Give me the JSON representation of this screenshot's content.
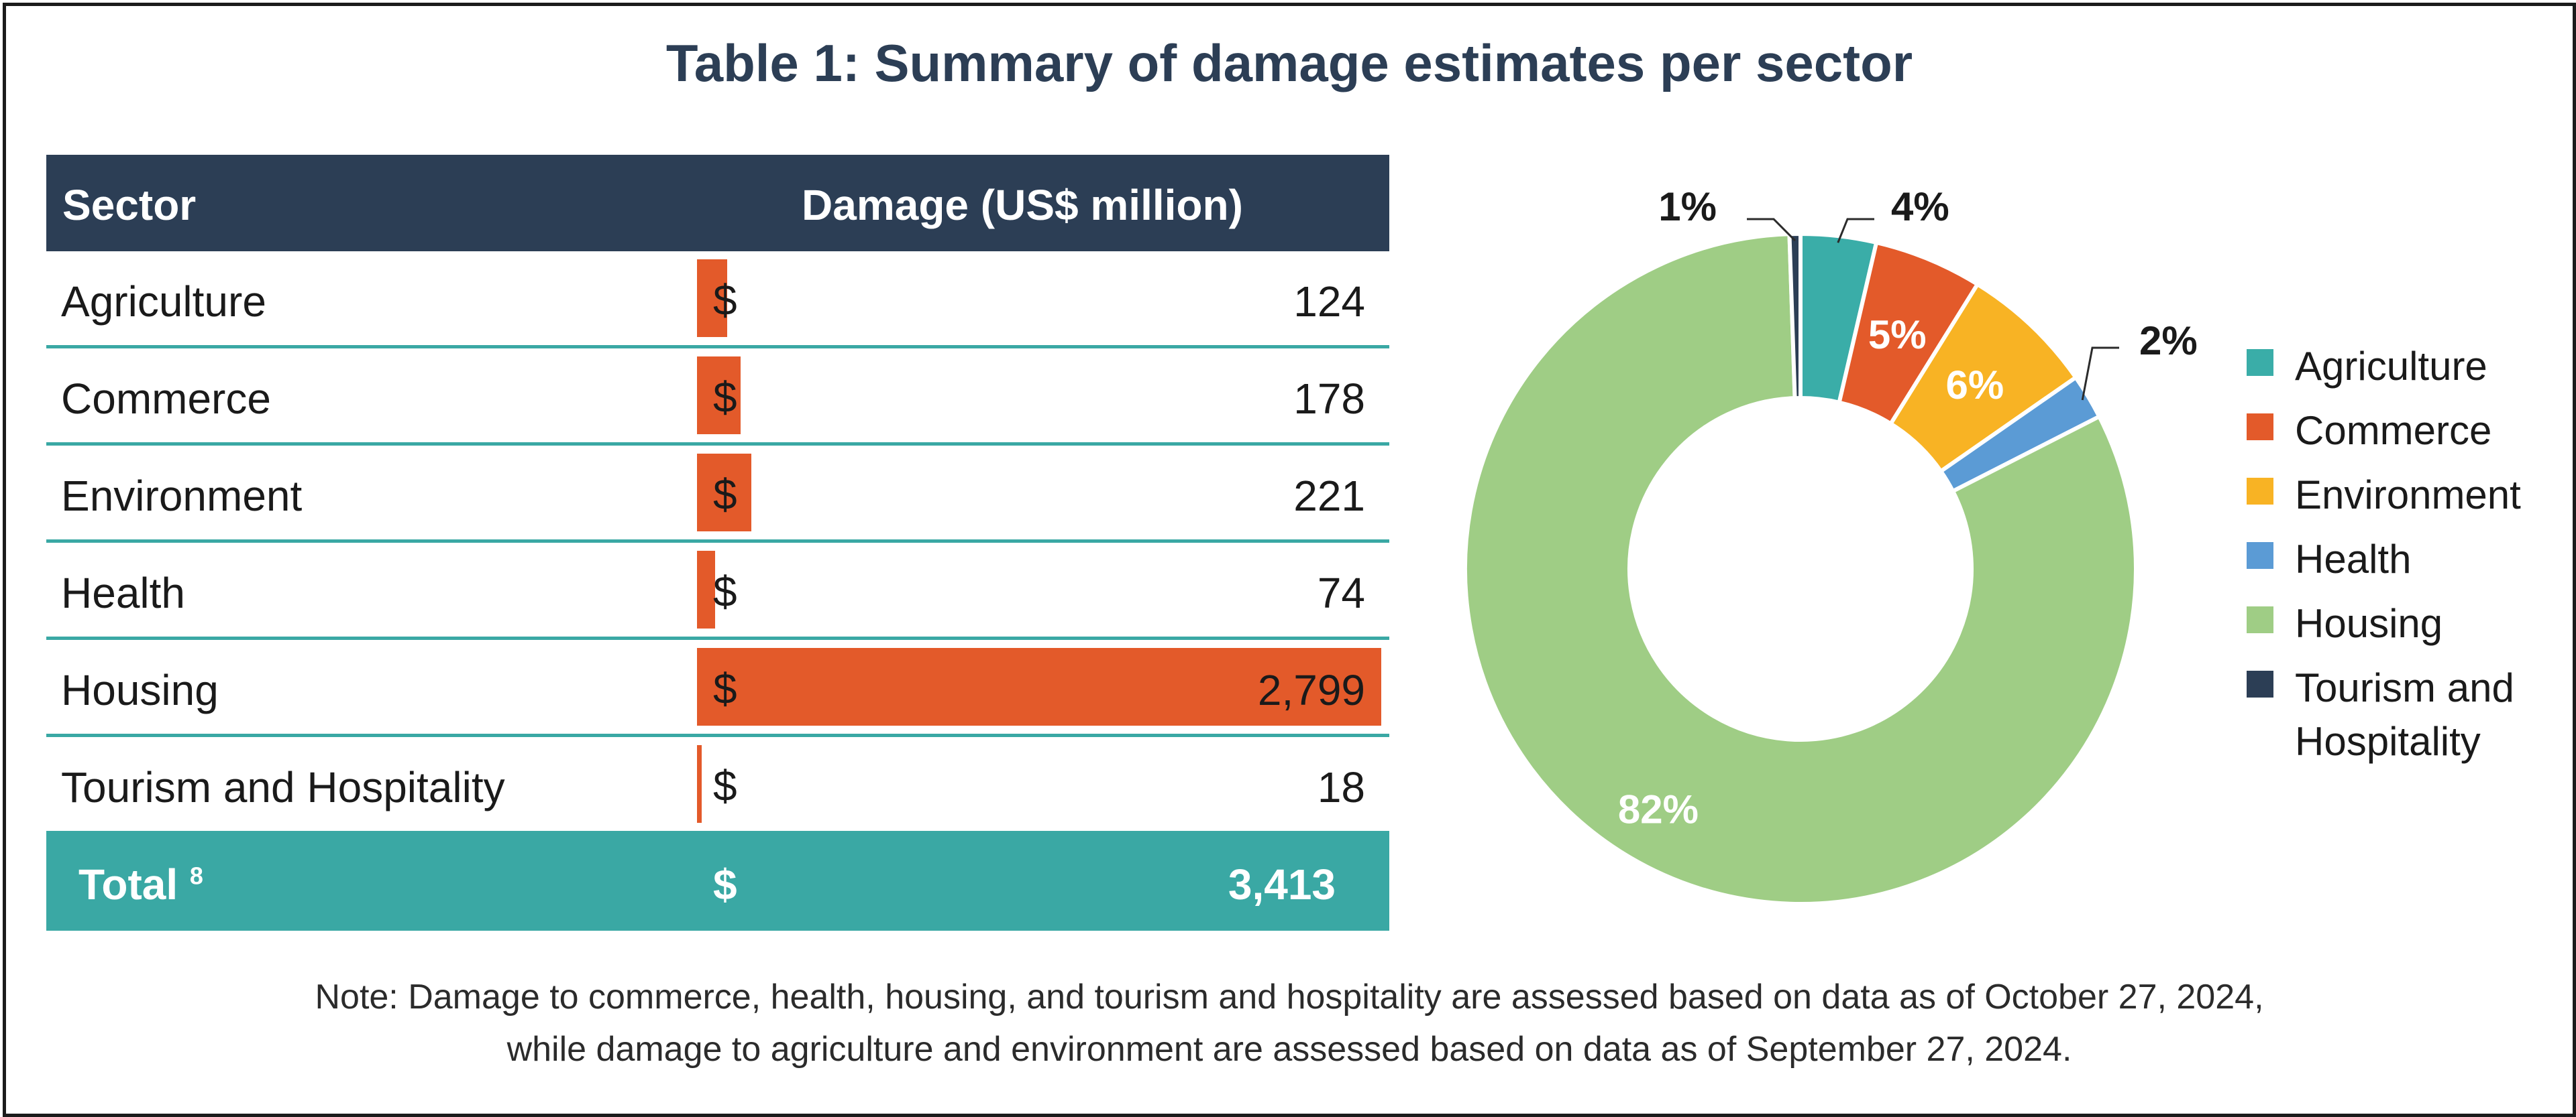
{
  "title": "Table 1: Summary of damage estimates per sector",
  "table": {
    "header_sector": "Sector",
    "header_damage": "Damage (US$ million)",
    "currency_symbol": "$",
    "rows": [
      {
        "sector": "Agriculture",
        "value_label": "124",
        "value": 124
      },
      {
        "sector": "Commerce",
        "value_label": "178",
        "value": 178
      },
      {
        "sector": "Environment",
        "value_label": "221",
        "value": 221
      },
      {
        "sector": "Health",
        "value_label": "74",
        "value": 74
      },
      {
        "sector": "Housing",
        "value_label": "2,799",
        "value": 2799
      },
      {
        "sector": "Tourism and Hospitality",
        "value_label": "18",
        "value": 18
      }
    ],
    "total_label": "Total",
    "total_footnote": "8",
    "total_value_label": "3,413",
    "bar_color": "#e35a2a",
    "header_bg": "#2c3e55",
    "row_rule_color": "#3aa8a4",
    "total_bg": "#3aa8a4"
  },
  "note": {
    "line1": "Note: Damage to commerce, health, housing, and tourism and hospitality are assessed based on data as of October 27, 2024,",
    "line2": "while damage to agriculture and environment are assessed based on data as of September 27, 2024."
  },
  "chart_data": {
    "type": "pie",
    "variant": "donut",
    "title": "Table 1: Summary of damage estimates per sector",
    "categories": [
      "Agriculture",
      "Commerce",
      "Environment",
      "Health",
      "Housing",
      "Tourism and Hospitality"
    ],
    "values": [
      124,
      178,
      221,
      74,
      2799,
      18
    ],
    "labels": [
      "4%",
      "5%",
      "6%",
      "2%",
      "82%",
      "1%"
    ],
    "colors": [
      "#3aada8",
      "#e35a2a",
      "#f8b324",
      "#5b9bd5",
      "#9fcd85",
      "#2c3e55"
    ],
    "legend_labels": [
      "Agriculture",
      "Commerce",
      "Environment",
      "Health",
      "Housing",
      "Tourism and Hospitality"
    ],
    "legend_position": "right"
  }
}
